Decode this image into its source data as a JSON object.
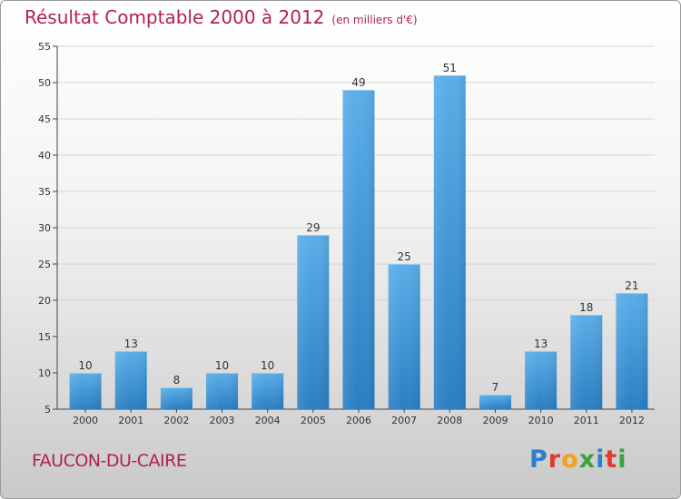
{
  "header": {
    "title": "Résultat Comptable 2000 à 2012",
    "subtitle": "(en milliers d'€)"
  },
  "commune": "FAUCON-DU-CAIRE",
  "logo": {
    "letters": [
      "P",
      "r",
      "o",
      "x",
      "i",
      "t",
      "i"
    ],
    "colors": [
      "#2f7fd0",
      "#e23b2e",
      "#f2a11a",
      "#3aa33b",
      "#2f7fd0",
      "#e23b2e",
      "#3aa33b"
    ]
  },
  "chart_data": {
    "type": "bar",
    "title": "Résultat Comptable 2000 à 2012",
    "ylabel": "",
    "xlabel": "",
    "categories": [
      "2000",
      "2001",
      "2002",
      "2003",
      "2004",
      "2005",
      "2006",
      "2007",
      "2008",
      "2009",
      "2010",
      "2011",
      "2012"
    ],
    "values": [
      10,
      13,
      8,
      10,
      10,
      29,
      49,
      25,
      51,
      7,
      13,
      18,
      21
    ],
    "ylim": [
      5,
      55
    ],
    "yticks": [
      5,
      10,
      15,
      20,
      25,
      30,
      35,
      40,
      45,
      50,
      55
    ],
    "grid": true,
    "bar_color": "#3d96d8"
  }
}
